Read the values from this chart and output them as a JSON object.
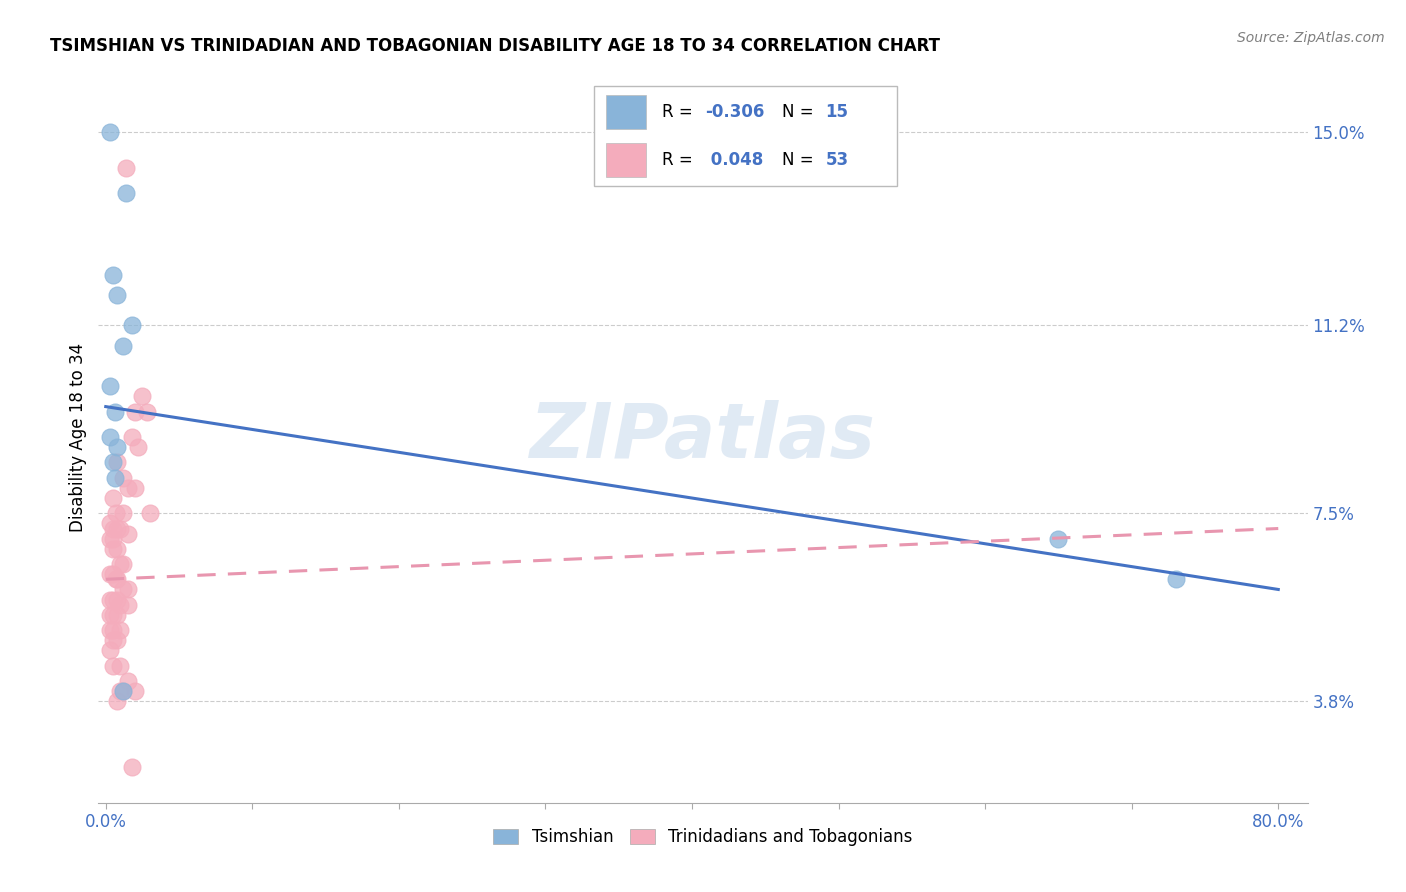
{
  "title": "TSIMSHIAN VS TRINIDADIAN AND TOBAGONIAN DISABILITY AGE 18 TO 34 CORRELATION CHART",
  "source": "Source: ZipAtlas.com",
  "ylabel": "Disability Age 18 to 34",
  "ylabel_ticks": [
    "3.8%",
    "7.5%",
    "11.2%",
    "15.0%"
  ],
  "xlim": [
    -0.005,
    0.82
  ],
  "ylim": [
    0.018,
    0.162
  ],
  "ytick_vals": [
    0.038,
    0.075,
    0.112,
    0.15
  ],
  "xtick_vals": [
    0.0,
    0.1,
    0.2,
    0.3,
    0.4,
    0.5,
    0.6,
    0.7,
    0.8
  ],
  "xtick_labels_show": [
    "0.0%",
    "",
    "",
    "",
    "",
    "",
    "",
    "",
    "80.0%"
  ],
  "legend_blue_R": "-0.306",
  "legend_blue_N": "15",
  "legend_pink_R": "0.048",
  "legend_pink_N": "53",
  "legend_label_blue": "Tsimshian",
  "legend_label_pink": "Trinidadians and Tobagonians",
  "watermark": "ZIPatlas",
  "blue_color": "#89B4D9",
  "pink_color": "#F4ACBC",
  "blue_line_color": "#4472C4",
  "pink_line_color": "#E896AF",
  "axis_color": "#4472C4",
  "text_color": "#4472C4",
  "blue_scatter": [
    [
      0.003,
      0.15
    ],
    [
      0.014,
      0.138
    ],
    [
      0.005,
      0.122
    ],
    [
      0.008,
      0.118
    ],
    [
      0.018,
      0.112
    ],
    [
      0.012,
      0.108
    ],
    [
      0.003,
      0.1
    ],
    [
      0.006,
      0.095
    ],
    [
      0.003,
      0.09
    ],
    [
      0.008,
      0.088
    ],
    [
      0.005,
      0.085
    ],
    [
      0.006,
      0.082
    ],
    [
      0.012,
      0.04
    ],
    [
      0.65,
      0.07
    ],
    [
      0.73,
      0.062
    ]
  ],
  "pink_scatter": [
    [
      0.014,
      0.143
    ],
    [
      0.025,
      0.098
    ],
    [
      0.028,
      0.095
    ],
    [
      0.018,
      0.09
    ],
    [
      0.022,
      0.088
    ],
    [
      0.008,
      0.085
    ],
    [
      0.012,
      0.082
    ],
    [
      0.015,
      0.08
    ],
    [
      0.02,
      0.08
    ],
    [
      0.005,
      0.078
    ],
    [
      0.007,
      0.075
    ],
    [
      0.012,
      0.075
    ],
    [
      0.03,
      0.075
    ],
    [
      0.003,
      0.073
    ],
    [
      0.005,
      0.072
    ],
    [
      0.008,
      0.072
    ],
    [
      0.01,
      0.072
    ],
    [
      0.015,
      0.071
    ],
    [
      0.003,
      0.07
    ],
    [
      0.005,
      0.07
    ],
    [
      0.005,
      0.068
    ],
    [
      0.008,
      0.068
    ],
    [
      0.01,
      0.065
    ],
    [
      0.012,
      0.065
    ],
    [
      0.003,
      0.063
    ],
    [
      0.005,
      0.063
    ],
    [
      0.007,
      0.062
    ],
    [
      0.008,
      0.062
    ],
    [
      0.012,
      0.06
    ],
    [
      0.015,
      0.06
    ],
    [
      0.003,
      0.058
    ],
    [
      0.005,
      0.058
    ],
    [
      0.008,
      0.058
    ],
    [
      0.01,
      0.057
    ],
    [
      0.015,
      0.057
    ],
    [
      0.003,
      0.055
    ],
    [
      0.005,
      0.055
    ],
    [
      0.008,
      0.055
    ],
    [
      0.003,
      0.052
    ],
    [
      0.005,
      0.052
    ],
    [
      0.01,
      0.052
    ],
    [
      0.005,
      0.05
    ],
    [
      0.008,
      0.05
    ],
    [
      0.003,
      0.048
    ],
    [
      0.005,
      0.045
    ],
    [
      0.01,
      0.045
    ],
    [
      0.015,
      0.042
    ],
    [
      0.01,
      0.04
    ],
    [
      0.012,
      0.04
    ],
    [
      0.02,
      0.04
    ],
    [
      0.008,
      0.038
    ],
    [
      0.018,
      0.025
    ],
    [
      0.02,
      0.095
    ]
  ],
  "blue_trend_x": [
    0.0,
    0.8
  ],
  "blue_trend_y": [
    0.096,
    0.06
  ],
  "pink_trend_x": [
    0.0,
    0.8
  ],
  "pink_trend_y": [
    0.062,
    0.072
  ]
}
